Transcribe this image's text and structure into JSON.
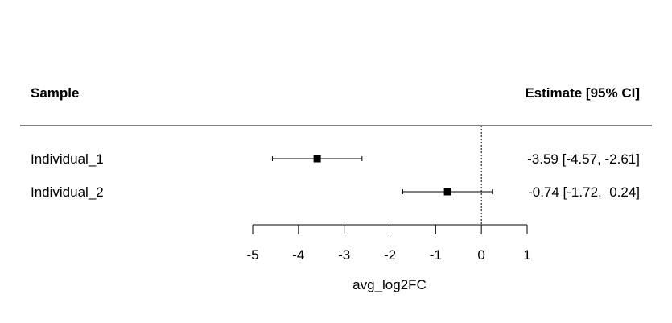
{
  "chart_data": {
    "type": "forest",
    "headers": {
      "left": "Sample",
      "right": "Estimate [95% CI]"
    },
    "rows": [
      {
        "label": "Individual_1",
        "estimate": -3.59,
        "ci_low": -4.57,
        "ci_high": -2.61,
        "text": "-3.59 [-4.57, -2.61]"
      },
      {
        "label": "Individual_2",
        "estimate": -0.74,
        "ci_low": -1.72,
        "ci_high": 0.24,
        "text": "-0.74 [-1.72,  0.24]"
      }
    ],
    "xlabel": "avg_log2FC",
    "xlim": [
      -5,
      1
    ],
    "xticks": [
      -5,
      -4,
      -3,
      -2,
      -1,
      0,
      1
    ],
    "xtick_labels": [
      "-5",
      "-4",
      "-3",
      "-2",
      "-1",
      "0",
      "1"
    ],
    "reference_line": 0,
    "colors": {
      "ink": "#000000",
      "background": "#ffffff"
    }
  }
}
